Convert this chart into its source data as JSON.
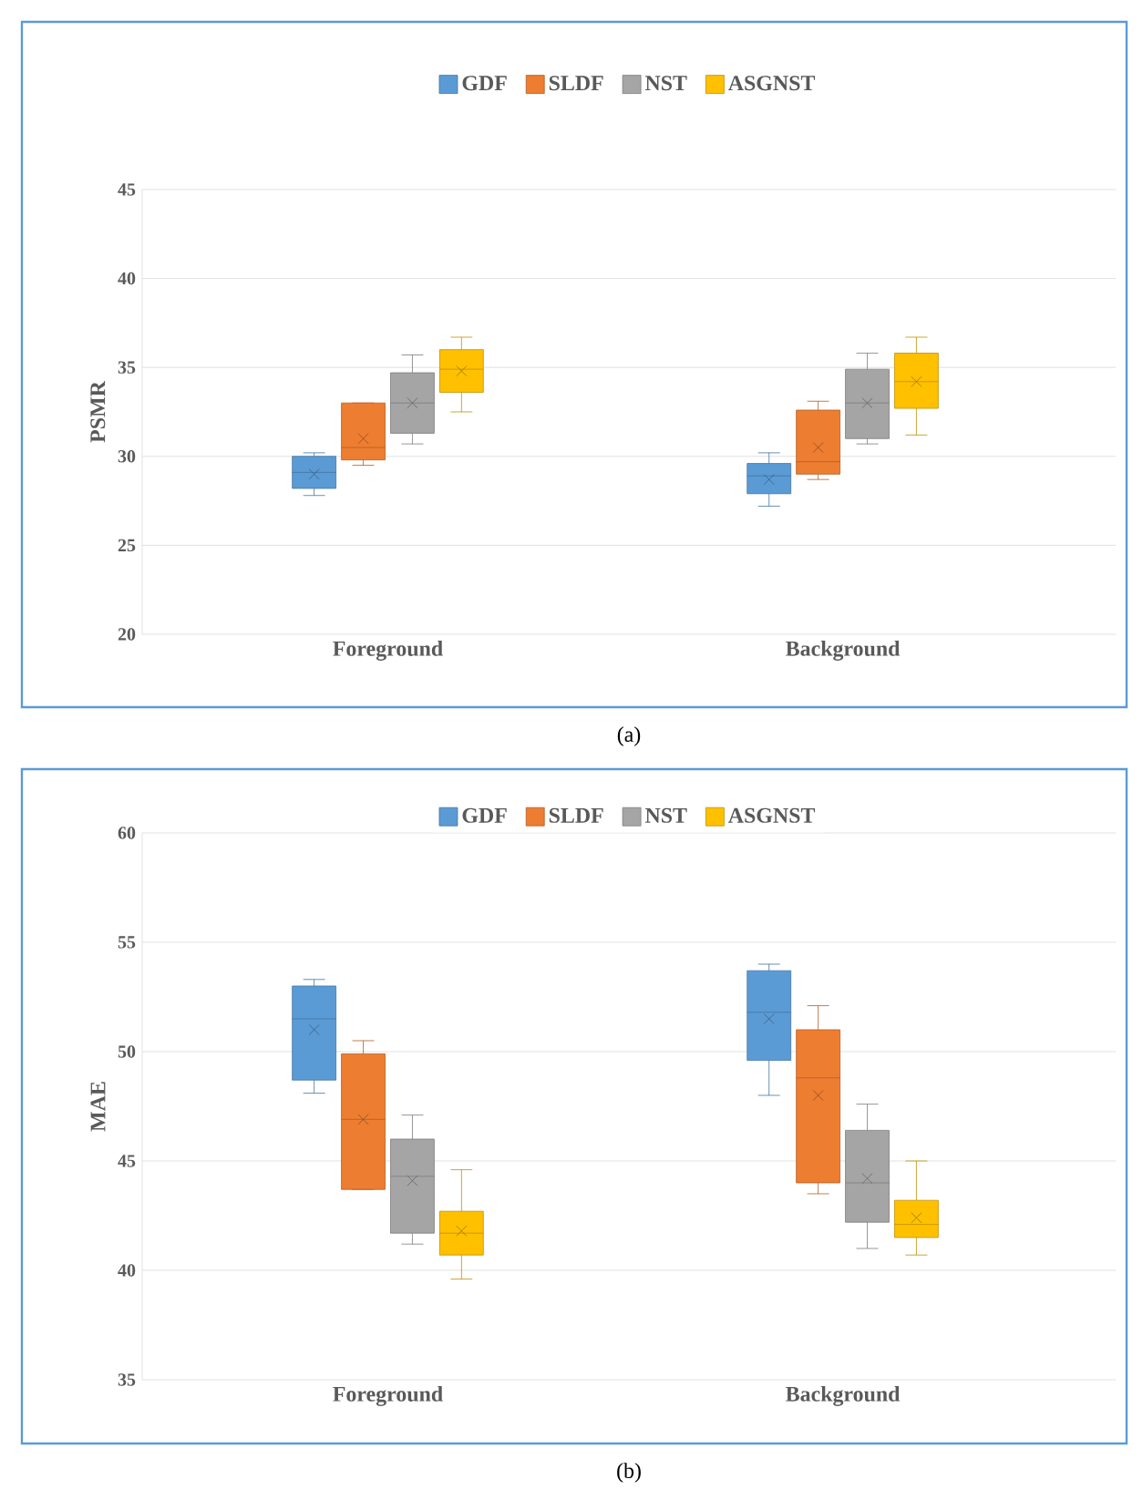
{
  "chart_data": [
    {
      "type": "box",
      "ylabel": "PSMR",
      "categories": [
        "Foreground",
        "Background"
      ],
      "ylim": [
        20,
        45
      ],
      "yticks": [
        20,
        25,
        30,
        35,
        40,
        45
      ],
      "grid": "y",
      "legend": "top",
      "annotations": [
        "(a)"
      ],
      "series": [
        {
          "name": "GDF",
          "color": "#5b9bd5",
          "boxes": [
            {
              "low": 27.8,
              "q1": 28.2,
              "median": 29.1,
              "q3": 30.0,
              "high": 30.2,
              "mean": 29.0
            },
            {
              "low": 27.2,
              "q1": 27.9,
              "median": 28.9,
              "q3": 29.6,
              "high": 30.2,
              "mean": 28.7
            }
          ]
        },
        {
          "name": "SLDF",
          "color": "#ed7d31",
          "boxes": [
            {
              "low": 29.5,
              "q1": 29.8,
              "median": 30.5,
              "q3": 33.0,
              "high": 33.0,
              "mean": 31.0
            },
            {
              "low": 28.7,
              "q1": 29.0,
              "median": 29.7,
              "q3": 32.6,
              "high": 33.1,
              "mean": 30.5
            }
          ]
        },
        {
          "name": "NST",
          "color": "#a5a5a5",
          "boxes": [
            {
              "low": 30.7,
              "q1": 31.3,
              "median": 33.0,
              "q3": 34.7,
              "high": 35.7,
              "mean": 33.0
            },
            {
              "low": 30.7,
              "q1": 31.0,
              "median": 33.0,
              "q3": 34.9,
              "high": 35.8,
              "mean": 33.0
            }
          ]
        },
        {
          "name": "ASGNST",
          "color": "#ffc000",
          "boxes": [
            {
              "low": 32.5,
              "q1": 33.6,
              "median": 34.9,
              "q3": 36.0,
              "high": 36.7,
              "mean": 34.8
            },
            {
              "low": 31.2,
              "q1": 32.7,
              "median": 34.2,
              "q3": 35.8,
              "high": 36.7,
              "mean": 34.2
            }
          ]
        }
      ]
    },
    {
      "type": "box",
      "ylabel": "MAE",
      "categories": [
        "Foreground",
        "Background"
      ],
      "ylim": [
        35,
        60
      ],
      "yticks": [
        35,
        40,
        45,
        50,
        55,
        60
      ],
      "grid": "y",
      "legend": "top",
      "annotations": [
        "(b)"
      ],
      "series": [
        {
          "name": "GDF",
          "color": "#5b9bd5",
          "boxes": [
            {
              "low": 48.1,
              "q1": 48.7,
              "median": 51.5,
              "q3": 53.0,
              "high": 53.3,
              "mean": 51.0
            },
            {
              "low": 48.0,
              "q1": 49.6,
              "median": 51.8,
              "q3": 53.7,
              "high": 54.0,
              "mean": 51.5
            }
          ]
        },
        {
          "name": "SLDF",
          "color": "#ed7d31",
          "boxes": [
            {
              "low": 43.7,
              "q1": 43.7,
              "median": 46.9,
              "q3": 49.9,
              "high": 50.5,
              "mean": 46.9
            },
            {
              "low": 43.5,
              "q1": 44.0,
              "median": 48.8,
              "q3": 51.0,
              "high": 52.1,
              "mean": 48.0
            }
          ]
        },
        {
          "name": "NST",
          "color": "#a5a5a5",
          "boxes": [
            {
              "low": 41.2,
              "q1": 41.7,
              "median": 44.3,
              "q3": 46.0,
              "high": 47.1,
              "mean": 44.1
            },
            {
              "low": 41.0,
              "q1": 42.2,
              "median": 44.0,
              "q3": 46.4,
              "high": 47.6,
              "mean": 44.2
            }
          ]
        },
        {
          "name": "ASGNST",
          "color": "#ffc000",
          "boxes": [
            {
              "low": 39.6,
              "q1": 40.7,
              "median": 41.7,
              "q3": 42.7,
              "high": 44.6,
              "mean": 41.8
            },
            {
              "low": 40.7,
              "q1": 41.5,
              "median": 42.1,
              "q3": 43.2,
              "high": 45.0,
              "mean": 42.4
            }
          ]
        }
      ]
    }
  ]
}
